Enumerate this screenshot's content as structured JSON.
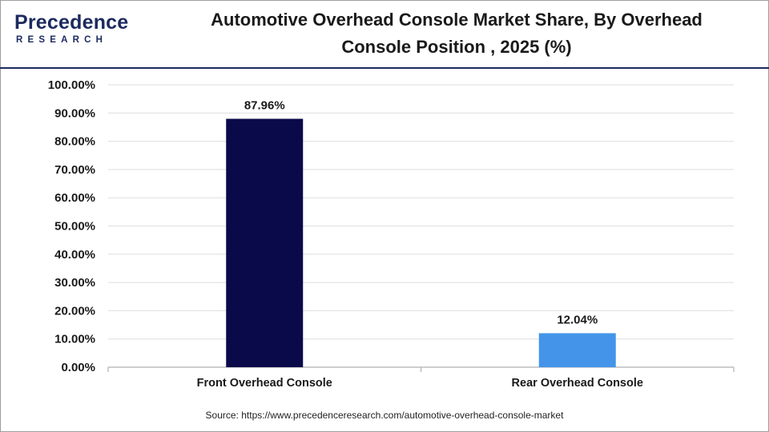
{
  "brand": {
    "name": "Precedence",
    "sub": "RESEARCH",
    "color": "#1b2a5e"
  },
  "title_line1": "Automotive Overhead Console Market Share, By Overhead",
  "title_line2": "Console Position , 2025 (%)",
  "source": "Source: https://www.precedenceresearch.com/automotive-overhead-console-market",
  "chart_data": {
    "type": "bar",
    "title": "Automotive Overhead Console Market Share, By Overhead Console Position , 2025 (%)",
    "categories": [
      "Front Overhead Console",
      "Rear Overhead Console"
    ],
    "values": [
      87.96,
      12.04
    ],
    "data_labels": [
      "87.96%",
      "12.04%"
    ],
    "bar_colors": [
      "#0a0a4a",
      "#4495ea"
    ],
    "ylim": [
      0,
      100
    ],
    "yticks": [
      0,
      10,
      20,
      30,
      40,
      50,
      60,
      70,
      80,
      90,
      100
    ],
    "ytick_labels": [
      "0.00%",
      "10.00%",
      "20.00%",
      "30.00%",
      "40.00%",
      "50.00%",
      "60.00%",
      "70.00%",
      "80.00%",
      "90.00%",
      "100.00%"
    ],
    "xlabel": "",
    "ylabel": "",
    "grid": true,
    "legend": "none"
  }
}
